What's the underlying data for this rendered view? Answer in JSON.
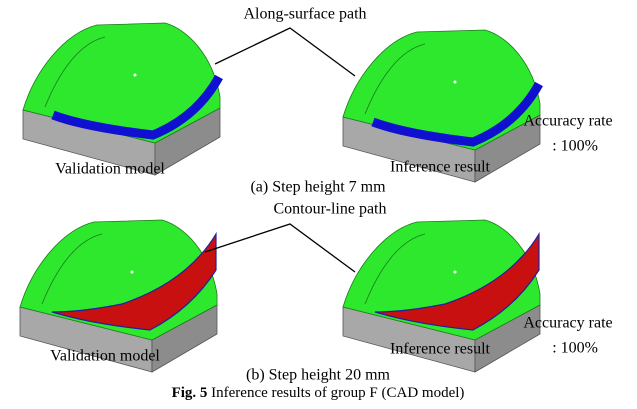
{
  "panels": [
    {
      "callout": "Along-surface path",
      "left_label": "Validation model",
      "right_label": "Inference result",
      "accuracy_label": "Accuracy rate",
      "accuracy_value": ": 100%",
      "caption": "(a) Step height 7 mm"
    },
    {
      "callout": "Contour-line path",
      "left_label": "Validation model",
      "right_label": "Inference result",
      "accuracy_label": "Accuracy rate",
      "accuracy_value": ": 100%",
      "caption": "(b) Step height 20 mm"
    }
  ],
  "figure_caption": {
    "number": "Fig. 5",
    "text": " Inference results of group F (CAD model)"
  }
}
